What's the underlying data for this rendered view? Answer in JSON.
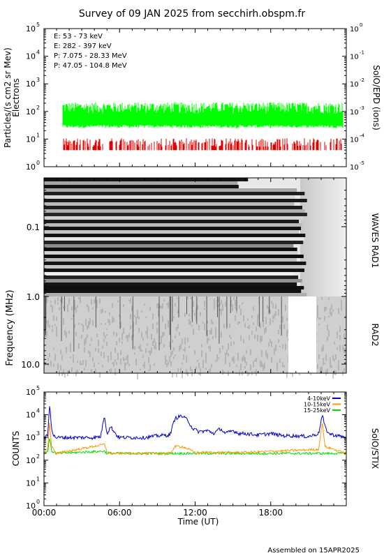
{
  "title": "Survey of 09 JAN 2025 from secchirh.obspm.fr",
  "footer": "Assembled on 15APR2025",
  "chart_data": [
    {
      "type": "line",
      "panel": "particles",
      "ylabel": "Particles/(s cm2 sr Mev)",
      "ylabel2": "Electrons",
      "right_label": "SolO/EPD (ions)",
      "yscale": "log",
      "ylim": [
        1,
        100000
      ],
      "yticks": [
        "10",
        "10",
        "10",
        "10",
        "10",
        "10"
      ],
      "yticks_exp": [
        "0",
        "1",
        "2",
        "3",
        "4",
        "5"
      ],
      "right_ylim": [
        1e-05,
        1
      ],
      "right_yticks": [
        "10",
        "10",
        "10",
        "10",
        "10",
        "10"
      ],
      "right_yticks_exp": [
        "-5",
        "-4",
        "-3",
        "-2",
        "-1",
        "0"
      ],
      "legend": [
        {
          "label": "E: 53 - 73 keV",
          "color": "#00ff00"
        },
        {
          "label": "E: 282 - 397 keV",
          "color": "#dd0000"
        },
        {
          "label": "P: 7.075 - 28.33 MeV",
          "color": "#000000"
        },
        {
          "label": "P: 47.05 - 104.8 MeV",
          "color": "#0000cc"
        }
      ],
      "series": [
        {
          "name": "E: 53 - 73 keV",
          "color": "#00ff00",
          "base": 60,
          "low": 25,
          "high": 250
        },
        {
          "name": "E: 282 - 397 keV",
          "color": "#dd0000",
          "base": 4,
          "low": 4,
          "high": 18
        }
      ]
    },
    {
      "type": "heatmap",
      "panel": "radio",
      "ylabel": "Frequency (MHz)",
      "right_labels": [
        "WAVES RAD1",
        "RAD2"
      ],
      "yscale": "log",
      "yticks": [
        "0.1",
        "1.0",
        "10.0"
      ],
      "ylim": [
        0.02,
        16
      ]
    },
    {
      "type": "line",
      "panel": "stix",
      "ylabel": "COUNTS",
      "right_label": "SolO/STIX",
      "yscale": "log",
      "ylim": [
        1,
        100000
      ],
      "yticks": [
        "10",
        "10",
        "10",
        "10",
        "10",
        "10"
      ],
      "yticks_exp": [
        "0",
        "1",
        "2",
        "3",
        "4",
        "5"
      ],
      "xlabel": "Time (UT)",
      "xticks": [
        "00:00",
        "06:00",
        "12:00",
        "18:00"
      ],
      "xlim": [
        0,
        24
      ],
      "legend": [
        {
          "label": "4-10keV",
          "color": "#0000cc"
        },
        {
          "label": "10-15keV",
          "color": "#ff9900"
        },
        {
          "label": "15-25keV",
          "color": "#00dd00"
        }
      ],
      "series": [
        {
          "name": "4-10keV",
          "color": "#0000cc",
          "x": [
            0,
            0.3,
            0.45,
            0.6,
            0.75,
            1.0,
            2,
            3,
            4,
            4.5,
            4.8,
            5.0,
            5.3,
            5.8,
            6,
            7,
            8,
            9,
            10,
            10.4,
            10.9,
            11.4,
            11.8,
            12.3,
            13,
            13.5,
            14,
            14.4,
            15,
            15.5,
            16,
            17,
            18,
            19,
            20,
            21,
            21.8,
            22.1,
            22.3,
            22.6,
            23,
            24
          ],
          "y": [
            1000,
            1200,
            30000,
            3000,
            1200,
            1000,
            1000,
            1000,
            1000,
            1100,
            10000,
            1500,
            3000,
            1200,
            1000,
            1000,
            1000,
            1200,
            1300,
            7000,
            9000,
            6000,
            2500,
            1800,
            2000,
            1500,
            2500,
            1500,
            2000,
            1500,
            1500,
            1300,
            1500,
            1200,
            1200,
            1100,
            1500,
            10000,
            3000,
            1500,
            1300,
            1000
          ]
        },
        {
          "name": "10-15keV",
          "color": "#ff9900",
          "x": [
            0,
            0.3,
            0.45,
            0.6,
            1.0,
            4.8,
            5.0,
            5.3,
            10,
            10.4,
            11.0,
            11.5,
            12,
            16,
            21.8,
            22.1,
            22.3,
            24
          ],
          "y": [
            220,
            300,
            5000,
            400,
            200,
            500,
            250,
            200,
            200,
            400,
            400,
            300,
            220,
            220,
            300,
            5000,
            400,
            200
          ]
        },
        {
          "name": "15-25keV",
          "color": "#00dd00",
          "x": [
            0,
            0.3,
            0.45,
            0.6,
            1.0,
            4.8,
            5.0,
            24
          ],
          "y": [
            200,
            250,
            1000,
            250,
            200,
            250,
            200,
            200
          ]
        }
      ]
    }
  ]
}
